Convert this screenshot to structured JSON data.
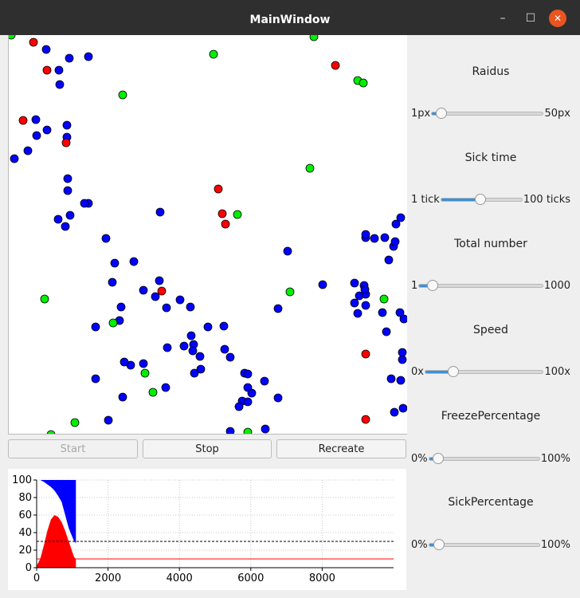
{
  "window": {
    "title": "MainWindow"
  },
  "buttons": {
    "start": "Start",
    "stop": "Stop",
    "recreate": "Recreate"
  },
  "controls": [
    {
      "label": "Raidus",
      "min": "1px",
      "max": "50px",
      "value_fraction": 0.04
    },
    {
      "label": "Sick time",
      "min": "1 tick",
      "max": "100 ticks",
      "value_fraction": 0.47
    },
    {
      "label": "Total number",
      "min": "1",
      "max": "1000",
      "value_fraction": 0.07
    },
    {
      "label": "Speed",
      "min": "0x",
      "max": "100x",
      "value_fraction": 0.21
    },
    {
      "label": "FreezePercentage",
      "min": "0%",
      "max": "100%",
      "value_fraction": 0.03
    },
    {
      "label": "SickPercentage",
      "min": "0%",
      "max": "100%",
      "value_fraction": 0.04
    }
  ],
  "colors": {
    "healthy": "#0000ff",
    "sick": "#ff0000",
    "recovered": "#00ee00",
    "accent": "#3c90d8"
  },
  "simulation": {
    "world_size": 500,
    "healthy": [
      [
        47,
        18
      ],
      [
        76,
        29
      ],
      [
        100,
        27
      ],
      [
        63,
        44
      ],
      [
        64,
        62
      ],
      [
        34,
        106
      ],
      [
        35,
        126
      ],
      [
        48,
        119
      ],
      [
        73,
        128
      ],
      [
        73,
        113
      ],
      [
        24,
        145
      ],
      [
        7,
        155
      ],
      [
        74,
        180
      ],
      [
        74,
        195
      ],
      [
        62,
        231
      ],
      [
        71,
        240
      ],
      [
        100,
        211
      ],
      [
        77,
        226
      ],
      [
        95,
        211
      ],
      [
        122,
        255
      ],
      [
        130,
        310
      ],
      [
        133,
        286
      ],
      [
        157,
        284
      ],
      [
        184,
        328
      ],
      [
        189,
        308
      ],
      [
        190,
        222
      ],
      [
        198,
        342
      ],
      [
        109,
        366
      ],
      [
        139,
        358
      ],
      [
        141,
        341
      ],
      [
        109,
        431
      ],
      [
        125,
        483
      ],
      [
        143,
        454
      ],
      [
        153,
        414
      ],
      [
        145,
        410
      ],
      [
        169,
        412
      ],
      [
        169,
        320
      ],
      [
        197,
        442
      ],
      [
        199,
        392
      ],
      [
        228,
        341
      ],
      [
        215,
        332
      ],
      [
        229,
        377
      ],
      [
        220,
        390
      ],
      [
        232,
        388
      ],
      [
        231,
        396
      ],
      [
        233,
        424
      ],
      [
        250,
        366
      ],
      [
        240,
        403
      ],
      [
        241,
        419
      ],
      [
        270,
        365
      ],
      [
        271,
        394
      ],
      [
        278,
        404
      ],
      [
        296,
        424
      ],
      [
        300,
        425
      ],
      [
        293,
        459
      ],
      [
        300,
        460
      ],
      [
        305,
        449
      ],
      [
        321,
        434
      ],
      [
        338,
        455
      ],
      [
        322,
        494
      ],
      [
        300,
        442
      ],
      [
        289,
        466
      ],
      [
        251,
        511
      ],
      [
        278,
        497
      ],
      [
        338,
        343
      ],
      [
        350,
        271
      ],
      [
        394,
        313
      ],
      [
        434,
        311
      ],
      [
        434,
        336
      ],
      [
        440,
        327
      ],
      [
        448,
        325
      ],
      [
        448,
        254
      ],
      [
        472,
        254
      ],
      [
        448,
        250
      ],
      [
        448,
        339
      ],
      [
        469,
        348
      ],
      [
        480,
        431
      ],
      [
        494,
        407
      ],
      [
        496,
        356
      ],
      [
        492,
        433
      ],
      [
        483,
        265
      ],
      [
        459,
        255
      ],
      [
        446,
        314
      ],
      [
        447,
        319
      ],
      [
        438,
        349
      ],
      [
        477,
        282
      ],
      [
        485,
        259
      ],
      [
        486,
        237
      ],
      [
        492,
        229
      ],
      [
        491,
        348
      ],
      [
        494,
        398
      ],
      [
        474,
        372
      ],
      [
        495,
        468
      ],
      [
        484,
        473
      ]
    ],
    "sick": [
      [
        31,
        9
      ],
      [
        48,
        44
      ],
      [
        18,
        107
      ],
      [
        72,
        135
      ],
      [
        192,
        321
      ],
      [
        263,
        193
      ],
      [
        268,
        224
      ],
      [
        272,
        237
      ],
      [
        410,
        38
      ],
      [
        448,
        400
      ],
      [
        448,
        482
      ]
    ],
    "recovered": [
      [
        3,
        0
      ],
      [
        143,
        75
      ],
      [
        257,
        24
      ],
      [
        383,
        2
      ],
      [
        438,
        57
      ],
      [
        445,
        60
      ],
      [
        378,
        167
      ],
      [
        287,
        225
      ],
      [
        45,
        331
      ],
      [
        131,
        361
      ],
      [
        353,
        322
      ],
      [
        471,
        331
      ],
      [
        171,
        424
      ],
      [
        181,
        448
      ],
      [
        83,
        486
      ],
      [
        300,
        498
      ],
      [
        53,
        501
      ]
    ]
  },
  "chart_data": {
    "type": "area",
    "xlim": [
      0,
      10000
    ],
    "ylim": [
      0,
      100
    ],
    "x_ticks": [
      "0",
      "2000",
      "4000",
      "6000",
      "8000"
    ],
    "y_ticks": [
      "0",
      "20",
      "40",
      "60",
      "80",
      "100"
    ],
    "series": [
      {
        "x": [
          0,
          100,
          200,
          300,
          400,
          500,
          600,
          700,
          800,
          900,
          1000,
          1050,
          1100
        ],
        "values": [
          2,
          10,
          25,
          42,
          55,
          60,
          58,
          52,
          42,
          30,
          18,
          12,
          10
        ]
      },
      {
        "x": [
          0,
          100,
          200,
          300,
          400,
          500,
          600,
          700,
          800,
          900,
          1000,
          1050,
          1100
        ],
        "values": [
          0,
          0,
          2,
          5,
          8,
          12,
          18,
          25,
          40,
          55,
          65,
          70,
          72
        ]
      }
    ],
    "reference_lines": [
      {
        "y": 30,
        "style": "dashed",
        "color": "#000000"
      },
      {
        "y": 10,
        "style": "solid",
        "color": "#ff0000"
      }
    ]
  }
}
